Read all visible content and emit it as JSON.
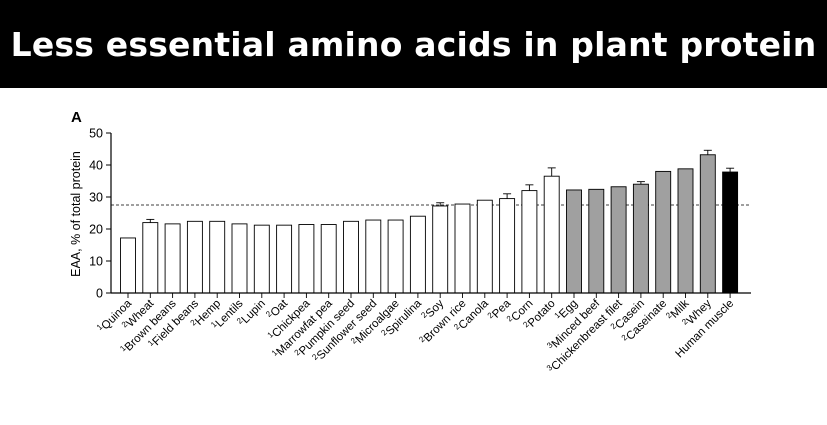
{
  "header": {
    "title": "Less essential amino acids in plant protein"
  },
  "chart_data": {
    "type": "bar",
    "panel_label": "A",
    "title": "",
    "xlabel": "",
    "ylabel": "EAA, % of total protein",
    "ylim": [
      0,
      50
    ],
    "yticks": [
      0,
      10,
      20,
      30,
      40,
      50
    ],
    "reference_line": 27.5,
    "grid": false,
    "colors": {
      "plant": "#ffffff",
      "animal": "#a0a0a0",
      "human": "#000000"
    },
    "categories": [
      {
        "sup": "1",
        "name": "Quinoa",
        "value": 17.2,
        "group": "plant"
      },
      {
        "sup": "2",
        "name": "Wheat",
        "value": 22.0,
        "err": 1.0,
        "group": "plant"
      },
      {
        "sup": "1",
        "name": "Brown beans",
        "value": 21.6,
        "group": "plant"
      },
      {
        "sup": "1",
        "name": "Field beans",
        "value": 22.4,
        "group": "plant"
      },
      {
        "sup": "2",
        "name": "Hemp",
        "value": 22.4,
        "group": "plant"
      },
      {
        "sup": "1",
        "name": "Lentils",
        "value": 21.6,
        "group": "plant"
      },
      {
        "sup": "2",
        "name": "Lupin",
        "value": 21.2,
        "group": "plant"
      },
      {
        "sup": "2",
        "name": "Oat",
        "value": 21.2,
        "group": "plant"
      },
      {
        "sup": "1",
        "name": "Chickpea",
        "value": 21.4,
        "group": "plant"
      },
      {
        "sup": "1",
        "name": "Marrowfat pea",
        "value": 21.4,
        "group": "plant"
      },
      {
        "sup": "2",
        "name": "Pumpkin seed",
        "value": 22.4,
        "group": "plant"
      },
      {
        "sup": "2",
        "name": "Sunflower seed",
        "value": 22.8,
        "group": "plant"
      },
      {
        "sup": "2",
        "name": "Microalgae",
        "value": 22.8,
        "group": "plant"
      },
      {
        "sup": "2",
        "name": "Spirulina",
        "value": 24.0,
        "group": "plant"
      },
      {
        "sup": "2",
        "name": "Soy",
        "value": 27.2,
        "err": 1.0,
        "group": "plant"
      },
      {
        "sup": "2",
        "name": "Brown rice",
        "value": 27.8,
        "group": "plant"
      },
      {
        "sup": "2",
        "name": "Canola",
        "value": 29.0,
        "group": "plant"
      },
      {
        "sup": "2",
        "name": "Pea",
        "value": 29.5,
        "err": 1.5,
        "group": "plant"
      },
      {
        "sup": "2",
        "name": "Corn",
        "value": 32.0,
        "err": 1.8,
        "group": "plant"
      },
      {
        "sup": "2",
        "name": "Potato",
        "value": 36.5,
        "err": 2.6,
        "group": "plant"
      },
      {
        "sup": "1",
        "name": "Egg",
        "value": 32.2,
        "group": "animal"
      },
      {
        "sup": "3",
        "name": "Minced beef",
        "value": 32.4,
        "group": "animal"
      },
      {
        "sup": "3",
        "name": "Chickenbreast filet",
        "value": 33.2,
        "group": "animal"
      },
      {
        "sup": "2",
        "name": "Casein",
        "value": 34.0,
        "err": 0.8,
        "group": "animal"
      },
      {
        "sup": "2",
        "name": "Caseinate",
        "value": 38.0,
        "group": "animal"
      },
      {
        "sup": "2",
        "name": "Milk",
        "value": 38.8,
        "group": "animal"
      },
      {
        "sup": "2",
        "name": "Whey",
        "value": 43.2,
        "err": 1.4,
        "group": "animal"
      },
      {
        "sup": "",
        "name": "Human muscle",
        "value": 37.8,
        "err": 1.2,
        "group": "human"
      }
    ]
  }
}
